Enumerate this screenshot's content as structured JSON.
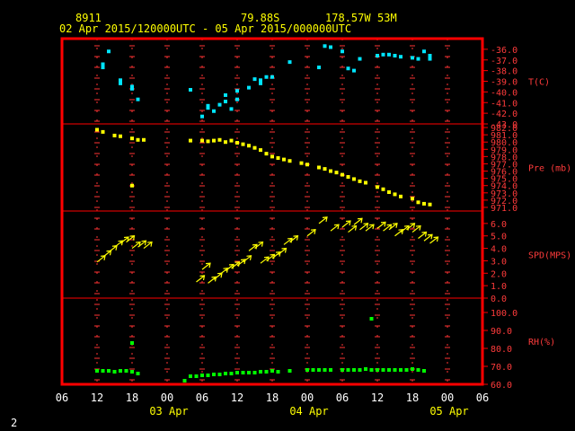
{
  "header": {
    "station": "8911",
    "lat": "79.88S",
    "lon": "178.57W",
    "elev": "53M",
    "range": "02 Apr 2015/120000UTC - 05 Apr 2015/000000UTC"
  },
  "footer_label": "2",
  "colors": {
    "frame": "#ff0000",
    "grid": "#ff3333",
    "temperature": "#00e5ff",
    "pressure": "#ffff00",
    "wind": "#ffff00",
    "humidity": "#00ff00"
  },
  "chart_data": {
    "type": "scatter",
    "x_unit": "hours since 02 Apr 2015 00:00 UTC",
    "x_range": [
      6,
      78
    ],
    "x_tick_labels": [
      "06",
      "12",
      "18",
      "00",
      "06",
      "12",
      "18",
      "00",
      "06",
      "12",
      "18",
      "00",
      "06"
    ],
    "day_labels": [
      "03 Apr",
      "04 Apr",
      "05 Apr"
    ],
    "panels": [
      {
        "key": "temperature",
        "label": "T(C)",
        "ylim": [
          -43,
          -35
        ],
        "y_ticks": [
          -36,
          -37,
          -38,
          -39,
          -40,
          -41,
          -42,
          -43
        ],
        "tick_labels": [
          "-36.0",
          "-37.0",
          "-38.0",
          "-39.0",
          "-40.0",
          "-41.0",
          "-42.0",
          "-43.0"
        ],
        "points": [
          [
            13,
            -37.7
          ],
          [
            13,
            -37.4
          ],
          [
            14,
            -36.2
          ],
          [
            16,
            -38.9
          ],
          [
            16,
            -39.2
          ],
          [
            18,
            -39.5
          ],
          [
            18,
            -39.7
          ],
          [
            19,
            -40.7
          ],
          [
            28,
            -39.8
          ],
          [
            30,
            -42.3
          ],
          [
            31,
            -41.5
          ],
          [
            31,
            -41.3
          ],
          [
            32,
            -41.8
          ],
          [
            33,
            -41.2
          ],
          [
            34,
            -40.9
          ],
          [
            34,
            -40.3
          ],
          [
            35,
            -41.6
          ],
          [
            36,
            -40.7
          ],
          [
            36,
            -39.9
          ],
          [
            38,
            -39.6
          ],
          [
            39,
            -38.8
          ],
          [
            40,
            -38.9
          ],
          [
            40,
            -39.2
          ],
          [
            41,
            -38.6
          ],
          [
            42,
            -38.6
          ],
          [
            45,
            -37.2
          ],
          [
            50,
            -37.7
          ],
          [
            51,
            -35.7
          ],
          [
            52,
            -35.8
          ],
          [
            54,
            -36.2
          ],
          [
            55,
            -37.8
          ],
          [
            56,
            -38.0
          ],
          [
            57,
            -36.9
          ],
          [
            60,
            -36.6
          ],
          [
            61,
            -36.5
          ],
          [
            62,
            -36.5
          ],
          [
            63,
            -36.6
          ],
          [
            64,
            -36.7
          ],
          [
            66,
            -36.8
          ],
          [
            67,
            -36.9
          ],
          [
            68,
            -36.2
          ],
          [
            69,
            -36.6
          ],
          [
            69,
            -36.9
          ]
        ]
      },
      {
        "key": "pressure",
        "label": "Pre (mb)",
        "ylim": [
          970.5,
          982.5
        ],
        "y_ticks": [
          982,
          981,
          980,
          979,
          978,
          977,
          976,
          975,
          974,
          973,
          972,
          971
        ],
        "tick_labels": [
          "982.0",
          "981.0",
          "980.0",
          "979.0",
          "978.0",
          "977.0",
          "976.0",
          "975.0",
          "974.0",
          "973.0",
          "972.0",
          "971.0"
        ],
        "points": [
          [
            12,
            981.7
          ],
          [
            13,
            981.4
          ],
          [
            15,
            980.9
          ],
          [
            16,
            980.8
          ],
          [
            18,
            980.5
          ],
          [
            19,
            980.3
          ],
          [
            20,
            980.3
          ],
          [
            28,
            980.2
          ],
          [
            30,
            980.2
          ],
          [
            31,
            980.1
          ],
          [
            32,
            980.2
          ],
          [
            33,
            980.3
          ],
          [
            34,
            980.0
          ],
          [
            35,
            980.2
          ],
          [
            36,
            979.9
          ],
          [
            37,
            979.7
          ],
          [
            38,
            979.5
          ],
          [
            39,
            979.2
          ],
          [
            40,
            978.9
          ],
          [
            41,
            978.4
          ],
          [
            42,
            978.0
          ],
          [
            43,
            977.8
          ],
          [
            44,
            977.6
          ],
          [
            45,
            977.4
          ],
          [
            47,
            977.1
          ],
          [
            48,
            976.9
          ],
          [
            50,
            976.5
          ],
          [
            51,
            976.3
          ],
          [
            52,
            976.0
          ],
          [
            53,
            975.8
          ],
          [
            54,
            975.5
          ],
          [
            55,
            975.2
          ],
          [
            56,
            974.9
          ],
          [
            57,
            974.6
          ],
          [
            58,
            974.4
          ],
          [
            60,
            973.8
          ],
          [
            61,
            973.5
          ],
          [
            62,
            973.1
          ],
          [
            63,
            972.8
          ],
          [
            64,
            972.5
          ],
          [
            66,
            972.2
          ],
          [
            67,
            971.7
          ],
          [
            68,
            971.5
          ],
          [
            69,
            971.4
          ],
          [
            18,
            974.0
          ]
        ]
      },
      {
        "key": "wind",
        "label": "SPD(MPS)",
        "ylim": [
          0,
          7
        ],
        "y_ticks": [
          6,
          5,
          4,
          3,
          2,
          1,
          0
        ],
        "tick_labels": [
          "6.0",
          "5.0",
          "4.0",
          "3.0",
          "2.0",
          "1.0",
          "0.0"
        ],
        "points": [
          [
            12,
            2.9
          ],
          [
            13,
            3.3
          ],
          [
            14,
            3.7
          ],
          [
            15,
            4.1
          ],
          [
            16,
            4.4
          ],
          [
            17,
            4.5
          ],
          [
            18,
            4.0
          ],
          [
            19,
            4.1
          ],
          [
            20,
            4.0
          ],
          [
            29,
            1.3
          ],
          [
            30,
            2.3
          ],
          [
            31,
            1.2
          ],
          [
            32,
            1.5
          ],
          [
            33,
            1.9
          ],
          [
            34,
            2.2
          ],
          [
            35,
            2.4
          ],
          [
            36,
            2.6
          ],
          [
            37,
            2.9
          ],
          [
            38,
            3.8
          ],
          [
            39,
            4.0
          ],
          [
            40,
            2.8
          ],
          [
            41,
            3.0
          ],
          [
            42,
            3.2
          ],
          [
            43,
            3.5
          ],
          [
            44,
            4.3
          ],
          [
            45,
            4.5
          ],
          [
            48,
            5.0
          ],
          [
            50,
            6.0
          ],
          [
            52,
            5.4
          ],
          [
            54,
            5.7
          ],
          [
            55,
            5.3
          ],
          [
            56,
            5.9
          ],
          [
            57,
            5.5
          ],
          [
            58,
            5.4
          ],
          [
            60,
            5.6
          ],
          [
            61,
            5.4
          ],
          [
            62,
            5.5
          ],
          [
            63,
            5.0
          ],
          [
            64,
            5.3
          ],
          [
            65,
            5.5
          ],
          [
            66,
            5.3
          ],
          [
            67,
            4.8
          ],
          [
            68,
            4.6
          ],
          [
            69,
            4.4
          ]
        ]
      },
      {
        "key": "humidity",
        "label": "RH(%)",
        "ylim": [
          60,
          108
        ],
        "y_ticks": [
          100,
          90,
          80,
          70,
          60
        ],
        "tick_labels": [
          "100.0",
          "90.0",
          "80.0",
          "70.0",
          "60.0"
        ],
        "points": [
          [
            12,
            67.5
          ],
          [
            13,
            67.5
          ],
          [
            14,
            67.5
          ],
          [
            15,
            67.0
          ],
          [
            16,
            67.5
          ],
          [
            17,
            67.5
          ],
          [
            18,
            83.0
          ],
          [
            18,
            67.0
          ],
          [
            19,
            66.0
          ],
          [
            27,
            62.0
          ],
          [
            28,
            64.5
          ],
          [
            29,
            64.5
          ],
          [
            30,
            65.0
          ],
          [
            31,
            65.0
          ],
          [
            32,
            65.5
          ],
          [
            33,
            65.5
          ],
          [
            34,
            66.0
          ],
          [
            35,
            66.0
          ],
          [
            36,
            66.5
          ],
          [
            37,
            66.5
          ],
          [
            38,
            66.5
          ],
          [
            39,
            66.5
          ],
          [
            40,
            67.0
          ],
          [
            41,
            67.0
          ],
          [
            42,
            67.5
          ],
          [
            43,
            67.0
          ],
          [
            45,
            67.5
          ],
          [
            48,
            68.0
          ],
          [
            49,
            68.0
          ],
          [
            50,
            68.0
          ],
          [
            51,
            68.0
          ],
          [
            52,
            68.0
          ],
          [
            54,
            68.0
          ],
          [
            55,
            68.0
          ],
          [
            56,
            68.0
          ],
          [
            57,
            68.0
          ],
          [
            58,
            68.5
          ],
          [
            59,
            96.5
          ],
          [
            59,
            68.0
          ],
          [
            60,
            68.0
          ],
          [
            61,
            68.0
          ],
          [
            62,
            68.0
          ],
          [
            63,
            68.0
          ],
          [
            64,
            68.0
          ],
          [
            65,
            68.0
          ],
          [
            66,
            68.5
          ],
          [
            67,
            68.0
          ],
          [
            68,
            67.5
          ]
        ]
      }
    ]
  }
}
